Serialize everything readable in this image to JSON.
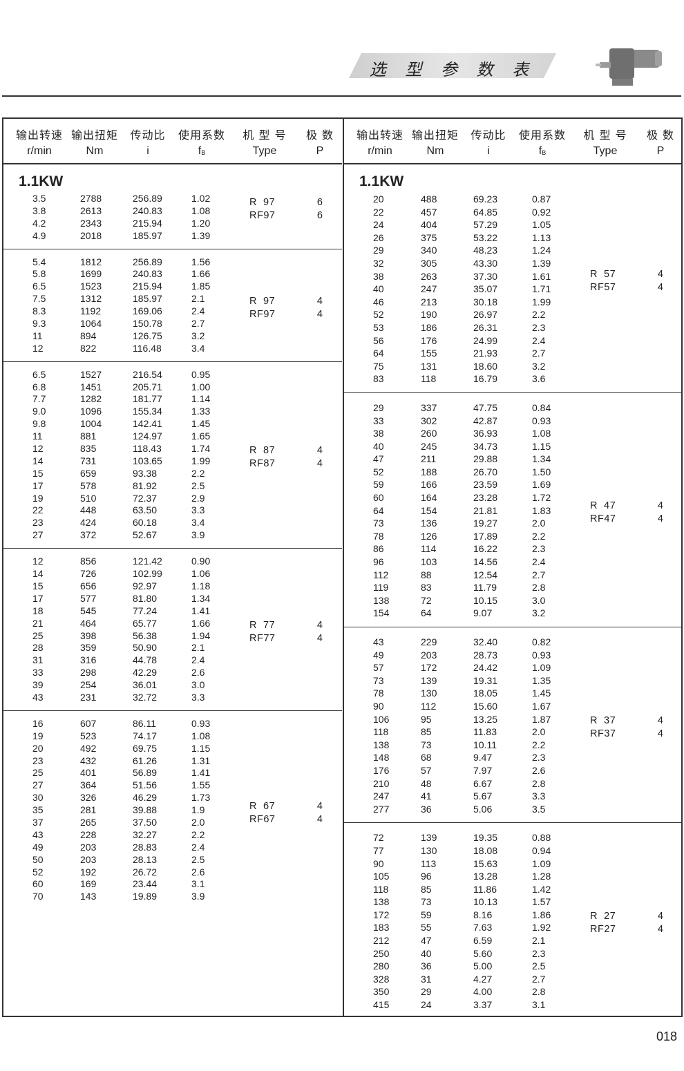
{
  "header": {
    "title": "选 型 参 数 表",
    "product_image": "gearmotor-icon"
  },
  "columns": {
    "cn": [
      "输出转速",
      "输出扭矩",
      "传动比",
      "使用系数",
      "机 型 号",
      "极  数"
    ],
    "en": [
      "r/min",
      "Nm",
      "i",
      "f",
      "Type",
      "P"
    ],
    "fb_subscript": "B"
  },
  "left": {
    "power": "1.1KW",
    "groups": [
      {
        "type": [
          "R  97",
          "RF97"
        ],
        "poles": [
          "6",
          "6"
        ],
        "rows": [
          [
            "3.5",
            "2788",
            "256.89",
            "1.02"
          ],
          [
            "3.8",
            "2613",
            "240.83",
            "1.08"
          ],
          [
            "4.2",
            "2343",
            "215.94",
            "1.20"
          ],
          [
            "4.9",
            "2018",
            "185.97",
            "1.39"
          ]
        ]
      },
      {
        "type": [
          "R  97",
          "RF97"
        ],
        "poles": [
          "4",
          "4"
        ],
        "rows": [
          [
            "5.4",
            "1812",
            "256.89",
            "1.56"
          ],
          [
            "5.8",
            "1699",
            "240.83",
            "1.66"
          ],
          [
            "6.5",
            "1523",
            "215.94",
            "1.85"
          ],
          [
            "7.5",
            "1312",
            "185.97",
            "2.1"
          ],
          [
            "8.3",
            "1192",
            "169.06",
            "2.4"
          ],
          [
            "9.3",
            "1064",
            "150.78",
            "2.7"
          ],
          [
            "11",
            "894",
            "126.75",
            "3.2"
          ],
          [
            "12",
            "822",
            "116.48",
            "3.4"
          ]
        ]
      },
      {
        "type": [
          "R  87",
          "RF87"
        ],
        "poles": [
          "4",
          "4"
        ],
        "rows": [
          [
            "6.5",
            "1527",
            "216.54",
            "0.95"
          ],
          [
            "6.8",
            "1451",
            "205.71",
            "1.00"
          ],
          [
            "7.7",
            "1282",
            "181.77",
            "1.14"
          ],
          [
            "9.0",
            "1096",
            "155.34",
            "1.33"
          ],
          [
            "9.8",
            "1004",
            "142.41",
            "1.45"
          ],
          [
            "11",
            "881",
            "124.97",
            "1.65"
          ],
          [
            "12",
            "835",
            "118.43",
            "1.74"
          ],
          [
            "14",
            "731",
            "103.65",
            "1.99"
          ],
          [
            "15",
            "659",
            "93.38",
            "2.2"
          ],
          [
            "17",
            "578",
            "81.92",
            "2.5"
          ],
          [
            "19",
            "510",
            "72.37",
            "2.9"
          ],
          [
            "22",
            "448",
            "63.50",
            "3.3"
          ],
          [
            "23",
            "424",
            "60.18",
            "3.4"
          ],
          [
            "27",
            "372",
            "52.67",
            "3.9"
          ]
        ]
      },
      {
        "type": [
          "R  77",
          "RF77"
        ],
        "poles": [
          "4",
          "4"
        ],
        "rows": [
          [
            "12",
            "856",
            "121.42",
            "0.90"
          ],
          [
            "14",
            "726",
            "102.99",
            "1.06"
          ],
          [
            "15",
            "656",
            "92.97",
            "1.18"
          ],
          [
            "17",
            "577",
            "81.80",
            "1.34"
          ],
          [
            "18",
            "545",
            "77.24",
            "1.41"
          ],
          [
            "21",
            "464",
            "65.77",
            "1.66"
          ],
          [
            "25",
            "398",
            "56.38",
            "1.94"
          ],
          [
            "28",
            "359",
            "50.90",
            "2.1"
          ],
          [
            "31",
            "316",
            "44.78",
            "2.4"
          ],
          [
            "33",
            "298",
            "42.29",
            "2.6"
          ],
          [
            "39",
            "254",
            "36.01",
            "3.0"
          ],
          [
            "43",
            "231",
            "32.72",
            "3.3"
          ]
        ]
      },
      {
        "type": [
          "R  67",
          "RF67"
        ],
        "poles": [
          "4",
          "4"
        ],
        "rows": [
          [
            "16",
            "607",
            "86.11",
            "0.93"
          ],
          [
            "19",
            "523",
            "74.17",
            "1.08"
          ],
          [
            "20",
            "492",
            "69.75",
            "1.15"
          ],
          [
            "23",
            "432",
            "61.26",
            "1.31"
          ],
          [
            "25",
            "401",
            "56.89",
            "1.41"
          ],
          [
            "27",
            "364",
            "51.56",
            "1.55"
          ],
          [
            "30",
            "326",
            "46.29",
            "1.73"
          ],
          [
            "35",
            "281",
            "39.88",
            "1.9"
          ],
          [
            "37",
            "265",
            "37.50",
            "2.0"
          ],
          [
            "43",
            "228",
            "32.27",
            "2.2"
          ],
          [
            "49",
            "203",
            "28.83",
            "2.4"
          ],
          [
            "50",
            "203",
            "28.13",
            "2.5"
          ],
          [
            "52",
            "192",
            "26.72",
            "2.6"
          ],
          [
            "60",
            "169",
            "23.44",
            "3.1"
          ],
          [
            "70",
            "143",
            "19.89",
            "3.9"
          ]
        ]
      }
    ]
  },
  "right": {
    "power": "1.1KW",
    "groups": [
      {
        "type": [
          "R  57",
          "RF57"
        ],
        "poles": [
          "4",
          "4"
        ],
        "rows": [
          [
            "20",
            "488",
            "69.23",
            "0.87"
          ],
          [
            "22",
            "457",
            "64.85",
            "0.92"
          ],
          [
            "24",
            "404",
            "57.29",
            "1.05"
          ],
          [
            "26",
            "375",
            "53.22",
            "1.13"
          ],
          [
            "29",
            "340",
            "48.23",
            "1.24"
          ],
          [
            "32",
            "305",
            "43.30",
            "1.39"
          ],
          [
            "38",
            "263",
            "37.30",
            "1.61"
          ],
          [
            "40",
            "247",
            "35.07",
            "1.71"
          ],
          [
            "46",
            "213",
            "30.18",
            "1.99"
          ],
          [
            "52",
            "190",
            "26.97",
            "2.2"
          ],
          [
            "53",
            "186",
            "26.31",
            "2.3"
          ],
          [
            "56",
            "176",
            "24.99",
            "2.4"
          ],
          [
            "64",
            "155",
            "21.93",
            "2.7"
          ],
          [
            "75",
            "131",
            "18.60",
            "3.2"
          ],
          [
            "83",
            "118",
            "16.79",
            "3.6"
          ]
        ]
      },
      {
        "type": [
          "R  47",
          "RF47"
        ],
        "poles": [
          "4",
          "4"
        ],
        "rows": [
          [
            "29",
            "337",
            "47.75",
            "0.84"
          ],
          [
            "33",
            "302",
            "42.87",
            "0.93"
          ],
          [
            "38",
            "260",
            "36.93",
            "1.08"
          ],
          [
            "40",
            "245",
            "34.73",
            "1.15"
          ],
          [
            "47",
            "211",
            "29.88",
            "1.34"
          ],
          [
            "52",
            "188",
            "26.70",
            "1.50"
          ],
          [
            "59",
            "166",
            "23.59",
            "1.69"
          ],
          [
            "60",
            "164",
            "23.28",
            "1.72"
          ],
          [
            "64",
            "154",
            "21.81",
            "1.83"
          ],
          [
            "73",
            "136",
            "19.27",
            "2.0"
          ],
          [
            "78",
            "126",
            "17.89",
            "2.2"
          ],
          [
            "86",
            "114",
            "16.22",
            "2.3"
          ],
          [
            "96",
            "103",
            "14.56",
            "2.4"
          ],
          [
            "112",
            "88",
            "12.54",
            "2.7"
          ],
          [
            "119",
            "83",
            "11.79",
            "2.8"
          ],
          [
            "138",
            "72",
            "10.15",
            "3.0"
          ],
          [
            "154",
            "64",
            "9.07",
            "3.2"
          ]
        ]
      },
      {
        "type": [
          "R  37",
          "RF37"
        ],
        "poles": [
          "4",
          "4"
        ],
        "rows": [
          [
            "43",
            "229",
            "32.40",
            "0.82"
          ],
          [
            "49",
            "203",
            "28.73",
            "0.93"
          ],
          [
            "57",
            "172",
            "24.42",
            "1.09"
          ],
          [
            "73",
            "139",
            "19.31",
            "1.35"
          ],
          [
            "78",
            "130",
            "18.05",
            "1.45"
          ],
          [
            "90",
            "112",
            "15.60",
            "1.67"
          ],
          [
            "106",
            "95",
            "13.25",
            "1.87"
          ],
          [
            "118",
            "85",
            "11.83",
            "2.0"
          ],
          [
            "138",
            "73",
            "10.11",
            "2.2"
          ],
          [
            "148",
            "68",
            "9.47",
            "2.3"
          ],
          [
            "176",
            "57",
            "7.97",
            "2.6"
          ],
          [
            "210",
            "48",
            "6.67",
            "2.8"
          ],
          [
            "247",
            "41",
            "5.67",
            "3.3"
          ],
          [
            "277",
            "36",
            "5.06",
            "3.5"
          ]
        ]
      },
      {
        "type": [
          "R  27",
          "RF27"
        ],
        "poles": [
          "4",
          "4"
        ],
        "rows": [
          [
            "72",
            "139",
            "19.35",
            "0.88"
          ],
          [
            "77",
            "130",
            "18.08",
            "0.94"
          ],
          [
            "90",
            "113",
            "15.63",
            "1.09"
          ],
          [
            "105",
            "96",
            "13.28",
            "1.28"
          ],
          [
            "118",
            "85",
            "11.86",
            "1.42"
          ],
          [
            "138",
            "73",
            "10.13",
            "1.57"
          ],
          [
            "172",
            "59",
            "8.16",
            "1.86"
          ],
          [
            "183",
            "55",
            "7.63",
            "1.92"
          ],
          [
            "212",
            "47",
            "6.59",
            "2.1"
          ],
          [
            "250",
            "40",
            "5.60",
            "2.3"
          ],
          [
            "280",
            "36",
            "5.00",
            "2.5"
          ],
          [
            "328",
            "31",
            "4.27",
            "2.7"
          ],
          [
            "350",
            "29",
            "4.00",
            "2.8"
          ],
          [
            "415",
            "24",
            "3.37",
            "3.1"
          ]
        ]
      }
    ]
  },
  "page_number": "018"
}
